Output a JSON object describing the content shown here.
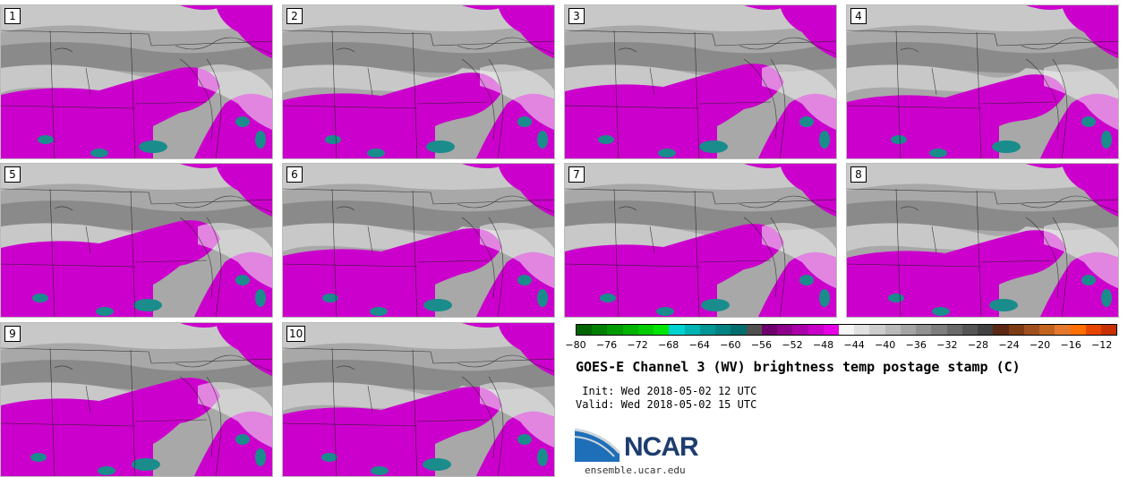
{
  "panels": [
    "1",
    "2",
    "3",
    "4",
    "5",
    "6",
    "7",
    "8",
    "9",
    "10"
  ],
  "colorbar": {
    "colors": [
      "#006400",
      "#007f00",
      "#009900",
      "#00b300",
      "#00cc00",
      "#00e600",
      "#00d2d2",
      "#00b4b4",
      "#009696",
      "#008282",
      "#006e6e",
      "#505050",
      "#6e006e",
      "#8c008c",
      "#aa00aa",
      "#c800c8",
      "#e600e6",
      "#f5f5f5",
      "#e1e1e1",
      "#cdcdcd",
      "#b9b9b9",
      "#a5a5a5",
      "#919191",
      "#7d7d7d",
      "#696969",
      "#555555",
      "#414141",
      "#5a2814",
      "#7d3c14",
      "#a0501e",
      "#c3641e",
      "#e6782d",
      "#ff6e00",
      "#e64600",
      "#c83200"
    ],
    "ticks": [
      "−80",
      "−76",
      "−72",
      "−68",
      "−64",
      "−60",
      "−56",
      "−52",
      "−48",
      "−44",
      "−40",
      "−36",
      "−32",
      "−28",
      "−24",
      "−20",
      "−16",
      "−12"
    ]
  },
  "title": "GOES-E Channel 3 (WV) brightness temp postage stamp (C)",
  "init": " Init: Wed 2018-05-02 12 UTC",
  "valid": "Valid: Wed 2018-05-02 15 UTC",
  "logo": {
    "text": "NCAR",
    "site": "ensemble.ucar.edu",
    "colors": [
      "#1f6fb8",
      "#d0d6dc",
      "#1d3d6e"
    ]
  },
  "map_colors": {
    "magenta": "#cc00cc",
    "teal": "#1a8c8c",
    "gray_light": "#c8c8c8",
    "gray_mid": "#a8a8a8",
    "gray_dark": "#8a8a8a",
    "white": "#f2f2f2"
  }
}
